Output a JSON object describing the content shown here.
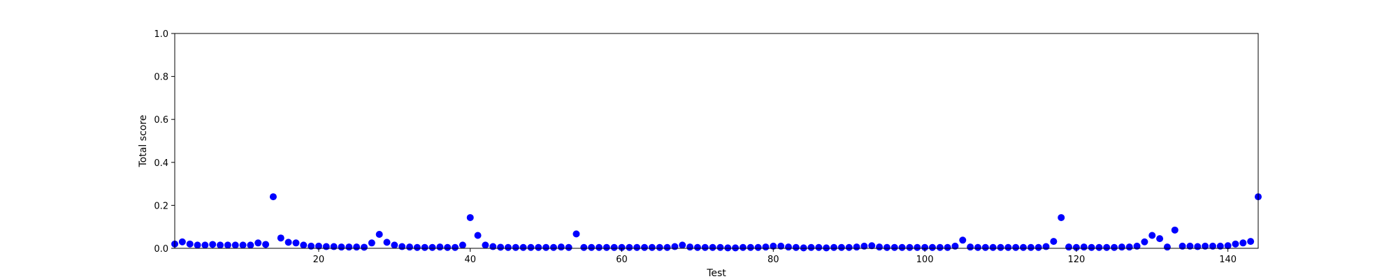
{
  "chart_data": {
    "type": "scatter",
    "xlabel": "Test",
    "ylabel": "Total score",
    "xlim": [
      1,
      144
    ],
    "ylim": [
      0,
      1.0
    ],
    "xticks": [
      20,
      40,
      60,
      80,
      100,
      120,
      140
    ],
    "yticks": [
      0.0,
      0.2,
      0.4,
      0.6,
      0.8,
      1.0
    ],
    "xtick_labels": [
      "20",
      "40",
      "60",
      "80",
      "100",
      "120",
      "140"
    ],
    "ytick_labels": [
      "0.0",
      "0.2",
      "0.4",
      "0.6",
      "0.8",
      "1.0"
    ],
    "grid": false,
    "marker_color": "#0000ff",
    "series": [
      {
        "x": [
          1,
          2,
          3,
          4,
          5,
          6,
          7,
          8,
          9,
          10,
          11,
          12,
          13,
          14,
          15,
          16,
          17,
          18,
          19,
          20,
          21,
          22,
          23,
          24,
          25,
          26,
          27,
          28,
          29,
          30,
          31,
          32,
          33,
          34,
          35,
          36,
          37,
          38,
          39,
          40,
          41,
          42,
          43,
          44,
          45,
          46,
          47,
          48,
          49,
          50,
          51,
          52,
          53,
          54,
          55,
          56,
          57,
          58,
          59,
          60,
          61,
          62,
          63,
          64,
          65,
          66,
          67,
          68,
          69,
          70,
          71,
          72,
          73,
          74,
          75,
          76,
          77,
          78,
          79,
          80,
          81,
          82,
          83,
          84,
          85,
          86,
          87,
          88,
          89,
          90,
          91,
          92,
          93,
          94,
          95,
          96,
          97,
          98,
          99,
          100,
          101,
          102,
          103,
          104,
          105,
          106,
          107,
          108,
          109,
          110,
          111,
          112,
          113,
          114,
          115,
          116,
          117,
          118,
          119,
          120,
          121,
          122,
          123,
          124,
          125,
          126,
          127,
          128,
          129,
          130,
          131,
          132,
          133,
          134,
          135,
          136,
          137,
          138,
          139,
          140,
          141,
          142,
          143,
          144
        ],
        "y": [
          0.02,
          0.03,
          0.02,
          0.015,
          0.015,
          0.018,
          0.015,
          0.015,
          0.015,
          0.015,
          0.015,
          0.025,
          0.018,
          0.24,
          0.048,
          0.028,
          0.025,
          0.015,
          0.01,
          0.01,
          0.008,
          0.008,
          0.006,
          0.006,
          0.006,
          0.005,
          0.025,
          0.065,
          0.028,
          0.015,
          0.008,
          0.006,
          0.004,
          0.004,
          0.004,
          0.006,
          0.004,
          0.004,
          0.015,
          0.143,
          0.06,
          0.015,
          0.008,
          0.005,
          0.004,
          0.004,
          0.004,
          0.004,
          0.004,
          0.004,
          0.004,
          0.006,
          0.004,
          0.067,
          0.004,
          0.004,
          0.004,
          0.004,
          0.004,
          0.004,
          0.004,
          0.004,
          0.004,
          0.004,
          0.004,
          0.004,
          0.008,
          0.015,
          0.006,
          0.004,
          0.004,
          0.004,
          0.004,
          0.002,
          0.002,
          0.004,
          0.004,
          0.004,
          0.006,
          0.01,
          0.01,
          0.006,
          0.004,
          0.002,
          0.004,
          0.004,
          0.002,
          0.004,
          0.004,
          0.004,
          0.006,
          0.01,
          0.012,
          0.006,
          0.004,
          0.004,
          0.004,
          0.004,
          0.004,
          0.004,
          0.004,
          0.004,
          0.004,
          0.01,
          0.038,
          0.006,
          0.004,
          0.004,
          0.004,
          0.004,
          0.004,
          0.004,
          0.004,
          0.004,
          0.004,
          0.008,
          0.032,
          0.143,
          0.006,
          0.004,
          0.006,
          0.004,
          0.004,
          0.004,
          0.004,
          0.006,
          0.006,
          0.01,
          0.03,
          0.06,
          0.045,
          0.006,
          0.085,
          0.01,
          0.01,
          0.008,
          0.01,
          0.01,
          0.01,
          0.012,
          0.02,
          0.025,
          0.032,
          0.24
        ]
      }
    ]
  }
}
